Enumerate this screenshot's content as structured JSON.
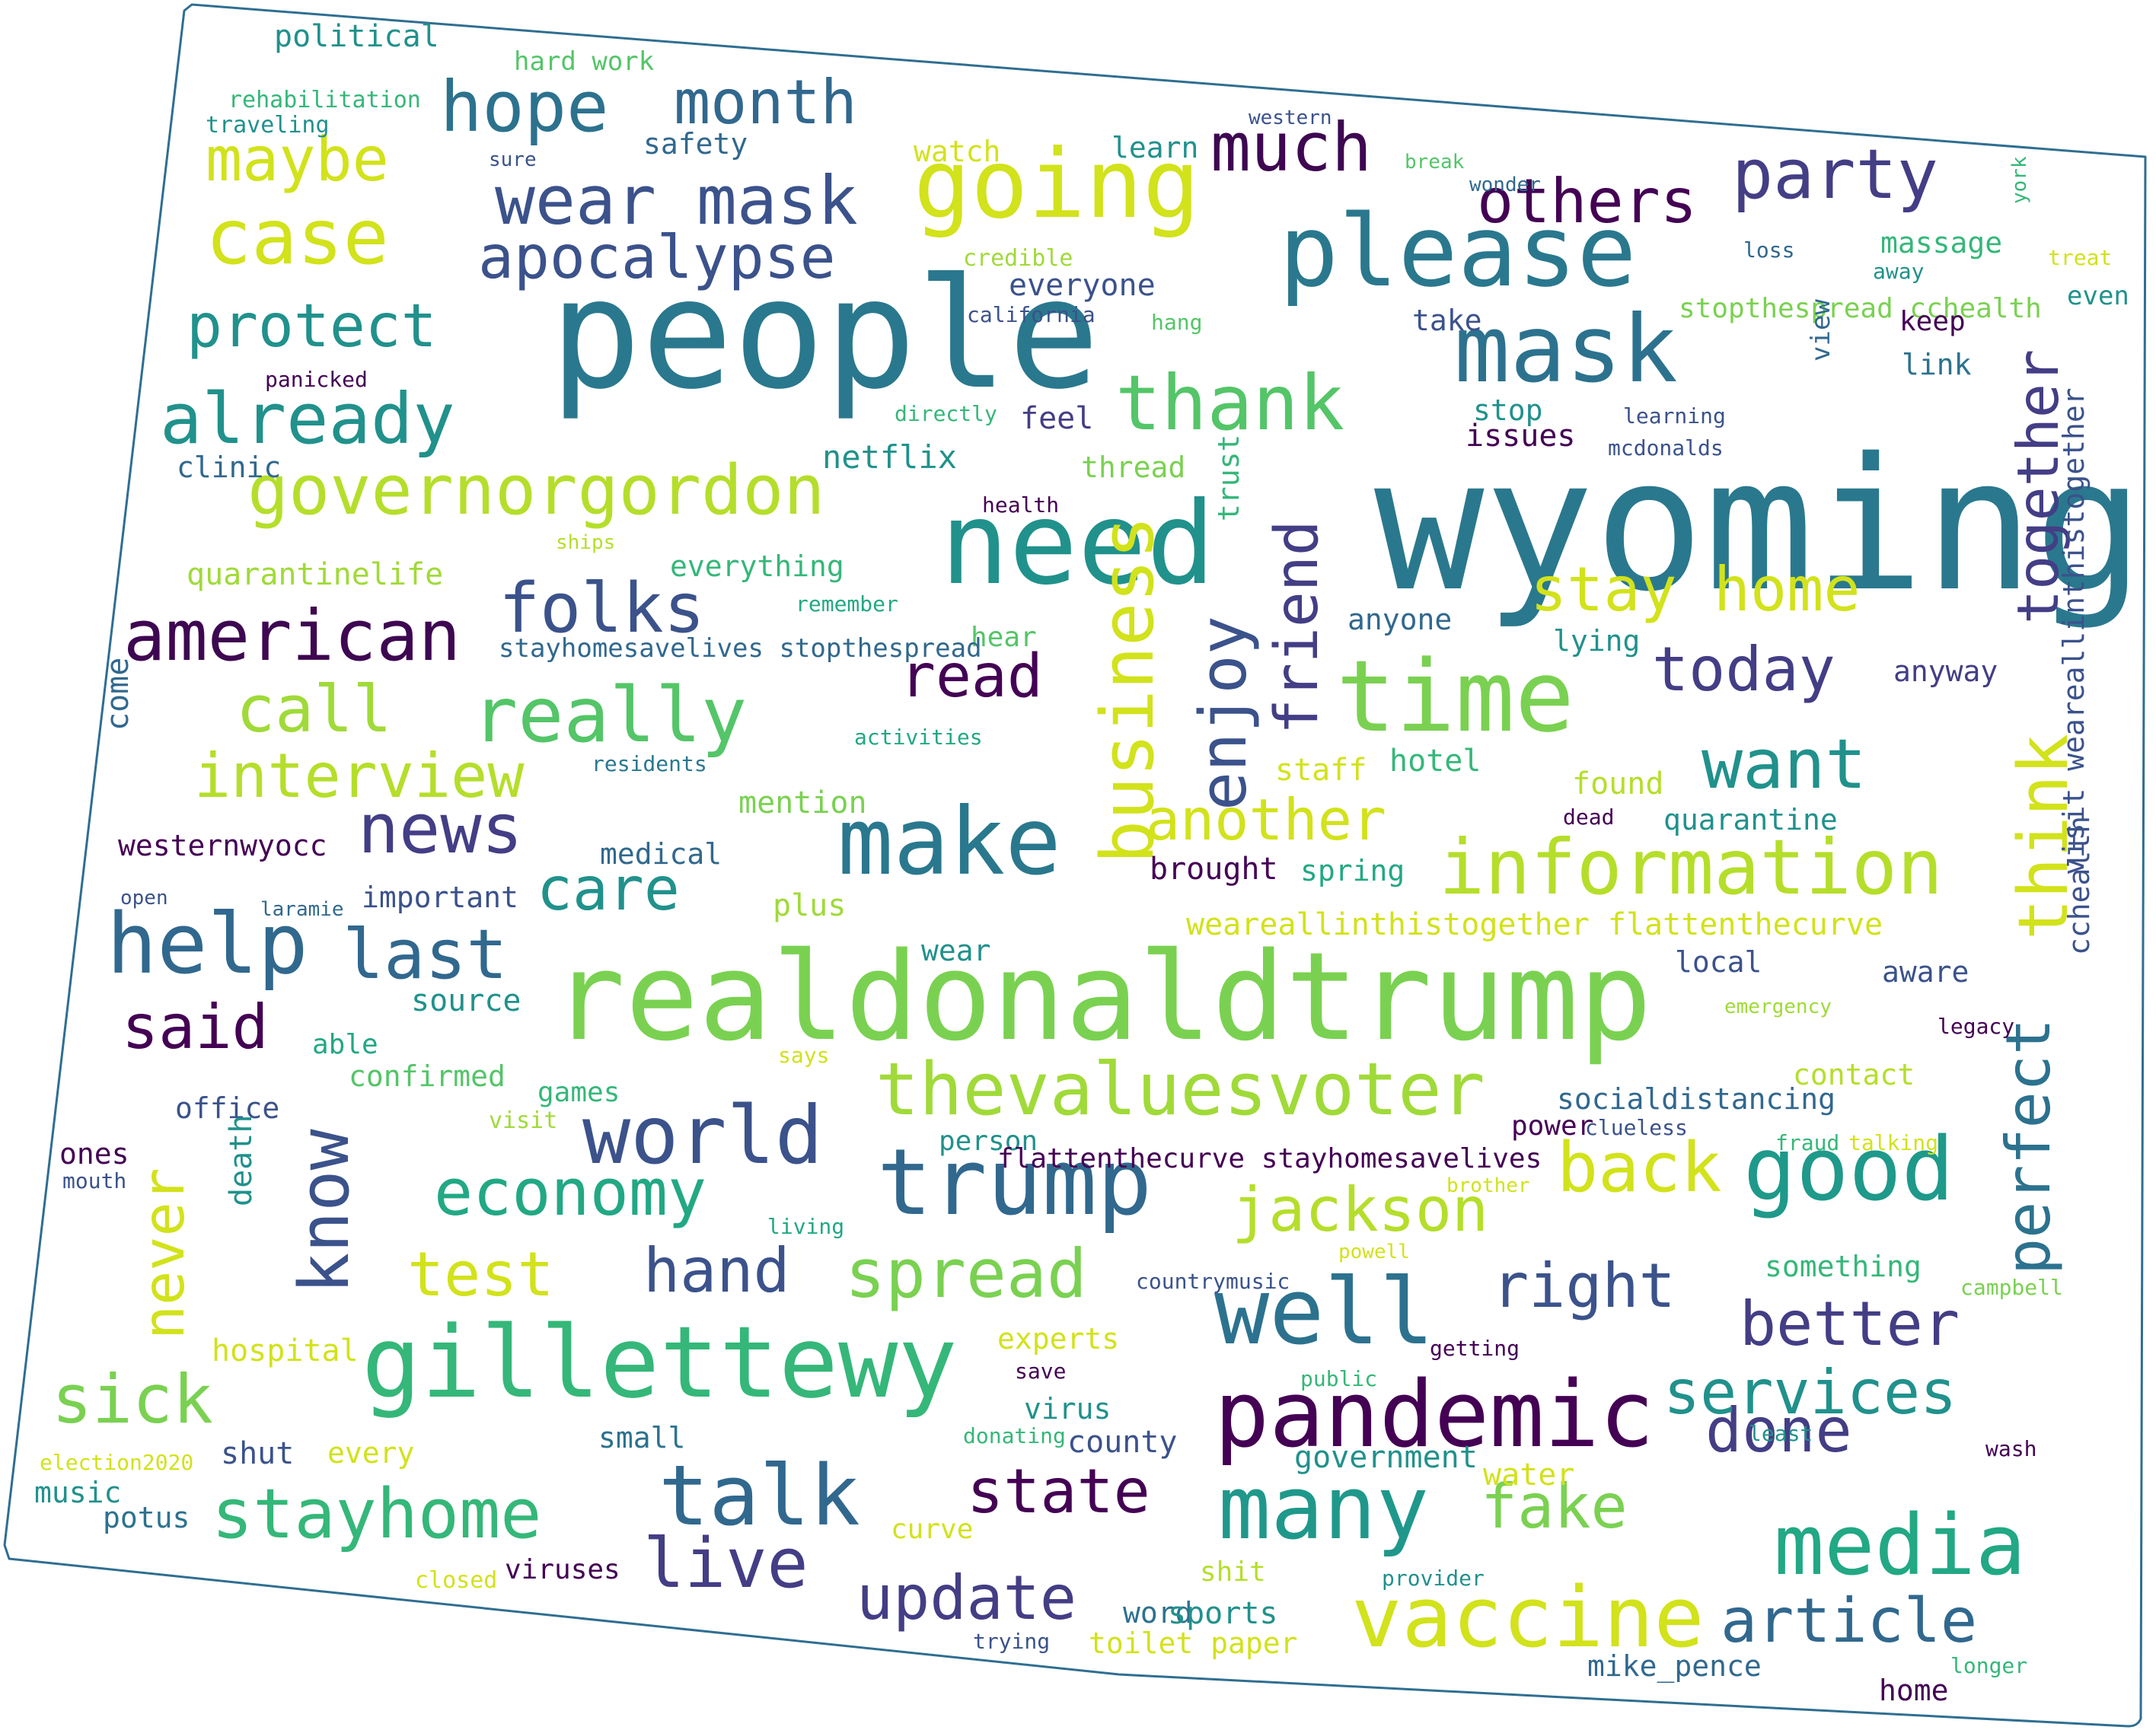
{
  "words": [
    {
      "text": "wyoming",
      "color": "#2a788e"
    },
    {
      "text": "people",
      "color": "#2a788e"
    },
    {
      "text": "realdonaldtrump",
      "color": "#7ad151"
    },
    {
      "text": "need",
      "color": "#21918c"
    },
    {
      "text": "please",
      "color": "#2a788e"
    },
    {
      "text": "mask",
      "color": "#2c728e"
    },
    {
      "text": "going",
      "color": "#d2e21b"
    },
    {
      "text": "time",
      "color": "#7ad151"
    },
    {
      "text": "gillettewy",
      "color": "#35b779"
    },
    {
      "text": "trump",
      "color": "#31688e"
    },
    {
      "text": "make",
      "color": "#2a788e"
    },
    {
      "text": "pandemic",
      "color": "#440154"
    },
    {
      "text": "information",
      "color": "#b5de2b"
    },
    {
      "text": "thank",
      "color": "#54c568"
    },
    {
      "text": "thevaluesvoter",
      "color": "#a0da39"
    },
    {
      "text": "know",
      "color": "#3b528b"
    },
    {
      "text": "help",
      "color": "#31688e"
    },
    {
      "text": "business",
      "color": "#d2e21b"
    },
    {
      "text": "well",
      "color": "#2c728e"
    },
    {
      "text": "good",
      "color": "#1f998a"
    },
    {
      "text": "media",
      "color": "#22a884"
    },
    {
      "text": "many",
      "color": "#1f988b"
    },
    {
      "text": "vaccine",
      "color": "#d2e21b"
    },
    {
      "text": "world",
      "color": "#3b528b"
    },
    {
      "text": "talk",
      "color": "#31688e"
    },
    {
      "text": "really",
      "color": "#54c568"
    },
    {
      "text": "american",
      "color": "#3e0751"
    },
    {
      "text": "much",
      "color": "#3e0751"
    },
    {
      "text": "party",
      "color": "#433e85"
    },
    {
      "text": "wear mask",
      "color": "#3b528b"
    },
    {
      "text": "case",
      "color": "#d2e21b"
    },
    {
      "text": "hope",
      "color": "#2c728e"
    },
    {
      "text": "month",
      "color": "#31688e"
    },
    {
      "text": "apocalypse",
      "color": "#3b528b"
    },
    {
      "text": "protect",
      "color": "#21918c"
    },
    {
      "text": "already",
      "color": "#21918c"
    },
    {
      "text": "governorgordon",
      "color": "#b5de2b"
    },
    {
      "text": "folks",
      "color": "#3b528b"
    },
    {
      "text": "call",
      "color": "#a0da39"
    },
    {
      "text": "interview",
      "color": "#b5de2b"
    },
    {
      "text": "news",
      "color": "#433e85"
    },
    {
      "text": "last",
      "color": "#31688e"
    },
    {
      "text": "said",
      "color": "#440154"
    },
    {
      "text": "economy",
      "color": "#22a884"
    },
    {
      "text": "test",
      "color": "#d2e21b"
    },
    {
      "text": "hand",
      "color": "#3b528b"
    },
    {
      "text": "spread",
      "color": "#7ad151"
    },
    {
      "text": "sick",
      "color": "#7ad151"
    },
    {
      "text": "stayhome",
      "color": "#35b779"
    },
    {
      "text": "live",
      "color": "#433e85"
    },
    {
      "text": "update",
      "color": "#433e85"
    },
    {
      "text": "state",
      "color": "#440154"
    },
    {
      "text": "fake",
      "color": "#7ad151"
    },
    {
      "text": "done",
      "color": "#433e85"
    },
    {
      "text": "article",
      "color": "#31688e"
    },
    {
      "text": "services",
      "color": "#21918c"
    },
    {
      "text": "better",
      "color": "#433e85"
    },
    {
      "text": "right",
      "color": "#3b528b"
    },
    {
      "text": "jackson",
      "color": "#b5de2b"
    },
    {
      "text": "back",
      "color": "#d2e21b"
    },
    {
      "text": "perfect",
      "color": "#2c728e"
    },
    {
      "text": "think",
      "color": "#d2e21b"
    },
    {
      "text": "together",
      "color": "#433e85"
    },
    {
      "text": "stay home",
      "color": "#d2e21b"
    },
    {
      "text": "today",
      "color": "#433e85"
    },
    {
      "text": "want",
      "color": "#21918c"
    },
    {
      "text": "another",
      "color": "#d2e21b"
    },
    {
      "text": "care",
      "color": "#21918c"
    },
    {
      "text": "read",
      "color": "#440154"
    },
    {
      "text": "enjoy",
      "color": "#3b528b"
    },
    {
      "text": "friend",
      "color": "#433e85"
    },
    {
      "text": "maybe",
      "color": "#d2e21b"
    },
    {
      "text": "others",
      "color": "#440154"
    },
    {
      "text": "never",
      "color": "#d2e21b"
    },
    {
      "text": "political",
      "color": "#21918c"
    },
    {
      "text": "hard work",
      "color": "#54c568"
    },
    {
      "text": "rehabilitation",
      "color": "#35b779"
    },
    {
      "text": "traveling",
      "color": "#21918c"
    },
    {
      "text": "safety",
      "color": "#31688e"
    },
    {
      "text": "watch",
      "color": "#d2e21b"
    },
    {
      "text": "learn",
      "color": "#21918c"
    },
    {
      "text": "western",
      "color": "#3b528b"
    },
    {
      "text": "break",
      "color": "#54c568"
    },
    {
      "text": "wonder",
      "color": "#31688e"
    },
    {
      "text": "sure",
      "color": "#3b528b"
    },
    {
      "text": "york",
      "color": "#35b779"
    },
    {
      "text": "massage",
      "color": "#35b779"
    },
    {
      "text": "loss",
      "color": "#31688e"
    },
    {
      "text": "treat",
      "color": "#d2e21b"
    },
    {
      "text": "away",
      "color": "#21918c"
    },
    {
      "text": "even",
      "color": "#21918c"
    },
    {
      "text": "credible",
      "color": "#a0da39"
    },
    {
      "text": "everyone",
      "color": "#3b528b"
    },
    {
      "text": "california",
      "color": "#3b528b"
    },
    {
      "text": "hang",
      "color": "#54c568"
    },
    {
      "text": "take",
      "color": "#3b528b"
    },
    {
      "text": "stopthespread cchealth",
      "color": "#7ad151"
    },
    {
      "text": "keep",
      "color": "#440154"
    },
    {
      "text": "view",
      "color": "#31688e"
    },
    {
      "text": "link",
      "color": "#2c728e"
    },
    {
      "text": "panicked",
      "color": "#440154"
    },
    {
      "text": "directly",
      "color": "#35b779"
    },
    {
      "text": "feel",
      "color": "#433e85"
    },
    {
      "text": "stop",
      "color": "#21918c"
    },
    {
      "text": "learning",
      "color": "#3b528b"
    },
    {
      "text": "issues",
      "color": "#440154"
    },
    {
      "text": "mcdonalds",
      "color": "#3b528b"
    },
    {
      "text": "clinic",
      "color": "#31688e"
    },
    {
      "text": "netflix",
      "color": "#21918c"
    },
    {
      "text": "thread",
      "color": "#7ad151"
    },
    {
      "text": "trust",
      "color": "#35b779"
    },
    {
      "text": "health",
      "color": "#440154"
    },
    {
      "text": "ships",
      "color": "#b5de2b"
    },
    {
      "text": "everything",
      "color": "#35b779"
    },
    {
      "text": "quarantinelife",
      "color": "#a0da39"
    },
    {
      "text": "remember",
      "color": "#22a884"
    },
    {
      "text": "anyone",
      "color": "#31688e"
    },
    {
      "text": "lying",
      "color": "#21918c"
    },
    {
      "text": "anyway",
      "color": "#433e85"
    },
    {
      "text": "hear",
      "color": "#54c568"
    },
    {
      "text": "stayhomesavelives stopthespread",
      "color": "#31688e"
    },
    {
      "text": "visit weareallinthistogether",
      "color": "#3b528b"
    },
    {
      "text": "come",
      "color": "#31688e"
    },
    {
      "text": "activities",
      "color": "#22a884"
    },
    {
      "text": "residents",
      "color": "#2a788e"
    },
    {
      "text": "staff",
      "color": "#d2e21b"
    },
    {
      "text": "hotel",
      "color": "#35b779"
    },
    {
      "text": "found",
      "color": "#b5de2b"
    },
    {
      "text": "mention",
      "color": "#7ad151"
    },
    {
      "text": "dead",
      "color": "#440154"
    },
    {
      "text": "quarantine",
      "color": "#21918c"
    },
    {
      "text": "westernwyocc",
      "color": "#440154"
    },
    {
      "text": "medical",
      "color": "#31688e"
    },
    {
      "text": "brought",
      "color": "#440154"
    },
    {
      "text": "spring",
      "color": "#22a884"
    },
    {
      "text": "open",
      "color": "#3b528b"
    },
    {
      "text": "laramie",
      "color": "#31688e"
    },
    {
      "text": "important",
      "color": "#3b528b"
    },
    {
      "text": "plus",
      "color": "#a0da39"
    },
    {
      "text": "weareallinthistogether flattenthecurve",
      "color": "#d2e21b"
    },
    {
      "text": "wear",
      "color": "#21918c"
    },
    {
      "text": "local",
      "color": "#3b528b"
    },
    {
      "text": "source",
      "color": "#21918c"
    },
    {
      "text": "aware",
      "color": "#3b528b"
    },
    {
      "text": "emergency",
      "color": "#a0da39"
    },
    {
      "text": "cchealth",
      "color": "#3b528b"
    },
    {
      "text": "legacy",
      "color": "#440154"
    },
    {
      "text": "able",
      "color": "#22a884"
    },
    {
      "text": "says",
      "color": "#d2e21b"
    },
    {
      "text": "confirmed",
      "color": "#54c568"
    },
    {
      "text": "contact",
      "color": "#b5de2b"
    },
    {
      "text": "games",
      "color": "#35b779"
    },
    {
      "text": "socialdistancing",
      "color": "#31688e"
    },
    {
      "text": "office",
      "color": "#3b528b"
    },
    {
      "text": "visit",
      "color": "#a0da39"
    },
    {
      "text": "power",
      "color": "#440154"
    },
    {
      "text": "person",
      "color": "#21918c"
    },
    {
      "text": "clueless",
      "color": "#3b528b"
    },
    {
      "text": "fraud",
      "color": "#35b779"
    },
    {
      "text": "talking",
      "color": "#d2e21b"
    },
    {
      "text": "ones",
      "color": "#440154"
    },
    {
      "text": "flattenthecurve stayhomesavelives",
      "color": "#440154"
    },
    {
      "text": "mouth",
      "color": "#3b528b"
    },
    {
      "text": "death",
      "color": "#21918c"
    },
    {
      "text": "brother",
      "color": "#d2e21b"
    },
    {
      "text": "living",
      "color": "#22a884"
    },
    {
      "text": "powell",
      "color": "#d2e21b"
    },
    {
      "text": "something",
      "color": "#35b779"
    },
    {
      "text": "countrymusic",
      "color": "#3b528b"
    },
    {
      "text": "campbell",
      "color": "#7ad151"
    },
    {
      "text": "hospital",
      "color": "#d2e21b"
    },
    {
      "text": "experts",
      "color": "#d2e21b"
    },
    {
      "text": "getting",
      "color": "#440154"
    },
    {
      "text": "save",
      "color": "#440154"
    },
    {
      "text": "public",
      "color": "#35b779"
    },
    {
      "text": "virus",
      "color": "#21918c"
    },
    {
      "text": "small",
      "color": "#2c728e"
    },
    {
      "text": "election2020",
      "color": "#d2e21b"
    },
    {
      "text": "shut",
      "color": "#3b528b"
    },
    {
      "text": "every",
      "color": "#d2e21b"
    },
    {
      "text": "donating",
      "color": "#35b779"
    },
    {
      "text": "county",
      "color": "#3b528b"
    },
    {
      "text": "government",
      "color": "#21918c"
    },
    {
      "text": "least",
      "color": "#21918c"
    },
    {
      "text": "wash",
      "color": "#440154"
    },
    {
      "text": "water",
      "color": "#d2e21b"
    },
    {
      "text": "music",
      "color": "#21918c"
    },
    {
      "text": "potus",
      "color": "#2c728e"
    },
    {
      "text": "curve",
      "color": "#d2e21b"
    },
    {
      "text": "viruses",
      "color": "#440154"
    },
    {
      "text": "closed",
      "color": "#d2e21b"
    },
    {
      "text": "shit",
      "color": "#b5de2b"
    },
    {
      "text": "provider",
      "color": "#21918c"
    },
    {
      "text": "word",
      "color": "#2c728e"
    },
    {
      "text": "sports",
      "color": "#21918c"
    },
    {
      "text": "trying",
      "color": "#3b528b"
    },
    {
      "text": "toilet paper",
      "color": "#d2e21b"
    },
    {
      "text": "mike_pence",
      "color": "#31688e"
    },
    {
      "text": "longer",
      "color": "#35b779"
    },
    {
      "text": "home",
      "color": "#440154"
    }
  ]
}
